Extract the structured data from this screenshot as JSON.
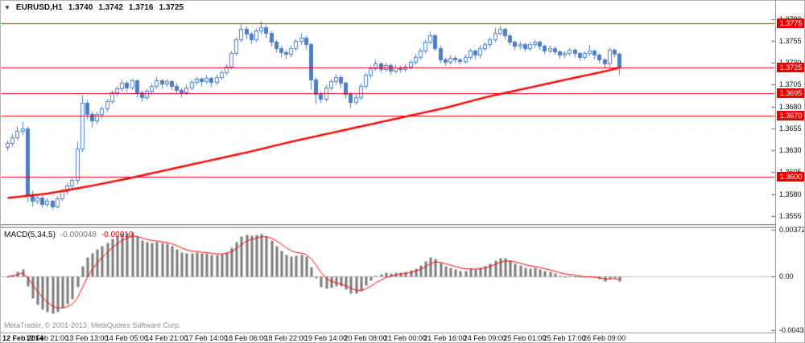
{
  "header": {
    "symbol": "EURUSD,H1",
    "open": "1.3740",
    "high": "1.3742",
    "low": "1.3716",
    "close": "1.3725"
  },
  "indicator_label": {
    "name": "MACD(5,34,5)",
    "value": "-0.000048",
    "signal": "-0.00010"
  },
  "watermark": "MetaTrader, © 2001-2013, MetaQuotes Software Corp.",
  "colors": {
    "candle": "#4d7ec1",
    "candle_bull_fill": "#ffffff",
    "ma": "#ff0000",
    "level": "#e80000",
    "badge_bg": "#e80000",
    "badge_text": "#ffffff",
    "histogram": "#7b7b7b",
    "signal": "#ff0000",
    "grid": "#ececec",
    "zero_line": "#c0c0c0"
  },
  "chart_data": {
    "type": "candlestick",
    "title": "EURUSD,H1",
    "ylim": [
      1.3553,
      1.3788
    ],
    "grid": "horizontal-dotted",
    "y_ticks": [
      "1.3780",
      "1.3755",
      "1.3730",
      "1.3705",
      "1.3680",
      "1.3655",
      "1.3630",
      "1.3605",
      "1.3580",
      "1.3555"
    ],
    "levels": [
      "1.3775",
      "1.3725",
      "1.3695",
      "1.3670",
      "1.3600"
    ],
    "x_labels": [
      "12 Feb 2014",
      "12 Feb 21:00",
      "13 Feb 13:00",
      "14 Feb 05:00",
      "14 Feb 21:00",
      "17 Feb 14:00",
      "18 Feb 06:00",
      "18 Feb 22:00",
      "19 Feb 14:00",
      "20 Feb 08:00",
      "21 Feb 00:00",
      "21 Feb 16:00",
      "24 Feb 09:00",
      "25 Feb 01:00",
      "25 Feb 17:00",
      "26 Feb 09:00"
    ],
    "ma_line": [
      [
        0,
        1.3576
      ],
      [
        8,
        1.3581
      ],
      [
        16,
        1.3589
      ],
      [
        24,
        1.3598
      ],
      [
        32,
        1.3608
      ],
      [
        40,
        1.3618
      ],
      [
        48,
        1.3628
      ],
      [
        56,
        1.3639
      ],
      [
        64,
        1.3649
      ],
      [
        72,
        1.3659
      ],
      [
        80,
        1.3669
      ],
      [
        88,
        1.3679
      ],
      [
        96,
        1.3691
      ],
      [
        104,
        1.3701
      ],
      [
        112,
        1.3711
      ],
      [
        117,
        1.3717
      ],
      [
        121,
        1.3722
      ],
      [
        123,
        1.3725
      ]
    ],
    "macd": {
      "fast": 5,
      "slow": 34,
      "signal_period": 5,
      "ylim": [
        -0.00434,
        0.00372
      ],
      "axis_labels": [
        "0.00372",
        "0.00",
        "-0.00434"
      ]
    },
    "candles": [
      [
        1.3634,
        1.3642,
        1.363,
        1.3638
      ],
      [
        1.3638,
        1.3649,
        1.3635,
        1.3645
      ],
      [
        1.3645,
        1.3658,
        1.3642,
        1.3652
      ],
      [
        1.3652,
        1.3663,
        1.3648,
        1.3655
      ],
      [
        1.3655,
        1.3658,
        1.3571,
        1.358
      ],
      [
        1.358,
        1.3584,
        1.3566,
        1.3572
      ],
      [
        1.3572,
        1.358,
        1.3569,
        1.3576
      ],
      [
        1.3576,
        1.3579,
        1.3565,
        1.3569
      ],
      [
        1.3569,
        1.3576,
        1.3566,
        1.3572
      ],
      [
        1.3572,
        1.3574,
        1.3563,
        1.3566
      ],
      [
        1.3566,
        1.3578,
        1.3564,
        1.3575
      ],
      [
        1.3575,
        1.3586,
        1.3572,
        1.3583
      ],
      [
        1.3583,
        1.3593,
        1.358,
        1.359
      ],
      [
        1.359,
        1.3599,
        1.3587,
        1.3596
      ],
      [
        1.3596,
        1.364,
        1.3592,
        1.3632
      ],
      [
        1.3632,
        1.3693,
        1.3628,
        1.3684
      ],
      [
        1.3684,
        1.3688,
        1.3666,
        1.3671
      ],
      [
        1.3671,
        1.3675,
        1.3657,
        1.3664
      ],
      [
        1.3664,
        1.3674,
        1.366,
        1.3671
      ],
      [
        1.3671,
        1.3681,
        1.3667,
        1.3678
      ],
      [
        1.3678,
        1.3689,
        1.3674,
        1.3686
      ],
      [
        1.3686,
        1.3699,
        1.3683,
        1.3696
      ],
      [
        1.3696,
        1.3704,
        1.3692,
        1.3701
      ],
      [
        1.3701,
        1.3712,
        1.3697,
        1.3707
      ],
      [
        1.3707,
        1.371,
        1.3697,
        1.3702
      ],
      [
        1.3702,
        1.3713,
        1.3699,
        1.371
      ],
      [
        1.371,
        1.3712,
        1.3691,
        1.3696
      ],
      [
        1.3696,
        1.3699,
        1.3686,
        1.3691
      ],
      [
        1.3691,
        1.3701,
        1.3688,
        1.3698
      ],
      [
        1.3698,
        1.3707,
        1.3694,
        1.3704
      ],
      [
        1.3704,
        1.3715,
        1.3701,
        1.371
      ],
      [
        1.371,
        1.3712,
        1.3701,
        1.3706
      ],
      [
        1.3706,
        1.3712,
        1.3703,
        1.3709
      ],
      [
        1.3709,
        1.3711,
        1.3699,
        1.3704
      ],
      [
        1.3704,
        1.3707,
        1.3694,
        1.3699
      ],
      [
        1.3699,
        1.3702,
        1.3691,
        1.3696
      ],
      [
        1.3696,
        1.3705,
        1.3693,
        1.3702
      ],
      [
        1.3702,
        1.3711,
        1.3699,
        1.3708
      ],
      [
        1.3708,
        1.3715,
        1.3705,
        1.3712
      ],
      [
        1.3712,
        1.3714,
        1.3704,
        1.3709
      ],
      [
        1.3709,
        1.3716,
        1.3706,
        1.3713
      ],
      [
        1.3713,
        1.3715,
        1.3703,
        1.3708
      ],
      [
        1.3708,
        1.3717,
        1.3705,
        1.3714
      ],
      [
        1.3714,
        1.3722,
        1.3711,
        1.3719
      ],
      [
        1.3719,
        1.3729,
        1.3716,
        1.3726
      ],
      [
        1.3726,
        1.3744,
        1.3723,
        1.3741
      ],
      [
        1.3741,
        1.376,
        1.3738,
        1.3757
      ],
      [
        1.3757,
        1.3774,
        1.3754,
        1.3769
      ],
      [
        1.3769,
        1.3772,
        1.3758,
        1.3763
      ],
      [
        1.3763,
        1.3766,
        1.3752,
        1.3757
      ],
      [
        1.3757,
        1.377,
        1.3754,
        1.3767
      ],
      [
        1.3767,
        1.3778,
        1.3763,
        1.3771
      ],
      [
        1.3771,
        1.3773,
        1.3759,
        1.3764
      ],
      [
        1.3764,
        1.3767,
        1.3749,
        1.3754
      ],
      [
        1.3754,
        1.3757,
        1.3742,
        1.3747
      ],
      [
        1.3747,
        1.375,
        1.3737,
        1.3742
      ],
      [
        1.3742,
        1.3746,
        1.3735,
        1.374
      ],
      [
        1.374,
        1.375,
        1.3737,
        1.3747
      ],
      [
        1.3747,
        1.3758,
        1.3744,
        1.3755
      ],
      [
        1.3755,
        1.3764,
        1.3751,
        1.3759
      ],
      [
        1.3759,
        1.3761,
        1.3746,
        1.3751
      ],
      [
        1.3751,
        1.3753,
        1.37,
        1.3711
      ],
      [
        1.3711,
        1.3714,
        1.3683,
        1.3694
      ],
      [
        1.3694,
        1.3698,
        1.3684,
        1.3689
      ],
      [
        1.3689,
        1.3705,
        1.3686,
        1.3702
      ],
      [
        1.3702,
        1.3712,
        1.3698,
        1.3709
      ],
      [
        1.3709,
        1.3717,
        1.3705,
        1.3714
      ],
      [
        1.3714,
        1.3716,
        1.3702,
        1.3707
      ],
      [
        1.3707,
        1.3709,
        1.369,
        1.3694
      ],
      [
        1.3694,
        1.3697,
        1.3679,
        1.3685
      ],
      [
        1.3685,
        1.3694,
        1.3682,
        1.3691
      ],
      [
        1.3691,
        1.3707,
        1.3688,
        1.3704
      ],
      [
        1.3704,
        1.3719,
        1.3701,
        1.3716
      ],
      [
        1.3716,
        1.3727,
        1.3713,
        1.3724
      ],
      [
        1.3724,
        1.3734,
        1.3721,
        1.3729
      ],
      [
        1.3729,
        1.3731,
        1.3719,
        1.3723
      ],
      [
        1.3723,
        1.373,
        1.372,
        1.3727
      ],
      [
        1.3727,
        1.3729,
        1.3717,
        1.3721
      ],
      [
        1.3721,
        1.3728,
        1.3718,
        1.3725
      ],
      [
        1.3725,
        1.3727,
        1.3719,
        1.3723
      ],
      [
        1.3723,
        1.3729,
        1.372,
        1.3726
      ],
      [
        1.3726,
        1.3734,
        1.3723,
        1.3731
      ],
      [
        1.3731,
        1.374,
        1.3728,
        1.3737
      ],
      [
        1.3737,
        1.3747,
        1.3734,
        1.3744
      ],
      [
        1.3744,
        1.3757,
        1.3741,
        1.3754
      ],
      [
        1.3754,
        1.3766,
        1.3751,
        1.3761
      ],
      [
        1.3761,
        1.3763,
        1.3744,
        1.3747
      ],
      [
        1.3747,
        1.375,
        1.373,
        1.3734
      ],
      [
        1.3734,
        1.3737,
        1.3727,
        1.3731
      ],
      [
        1.3731,
        1.3739,
        1.3728,
        1.3736
      ],
      [
        1.3736,
        1.3738,
        1.373,
        1.3734
      ],
      [
        1.3734,
        1.3736,
        1.3728,
        1.3732
      ],
      [
        1.3732,
        1.374,
        1.3729,
        1.3737
      ],
      [
        1.3737,
        1.3747,
        1.3734,
        1.3744
      ],
      [
        1.3744,
        1.3746,
        1.3735,
        1.3739
      ],
      [
        1.3739,
        1.375,
        1.3736,
        1.3747
      ],
      [
        1.3747,
        1.3754,
        1.3744,
        1.3751
      ],
      [
        1.3751,
        1.376,
        1.3748,
        1.3757
      ],
      [
        1.3757,
        1.3771,
        1.3754,
        1.3764
      ],
      [
        1.3764,
        1.3772,
        1.3761,
        1.3769
      ],
      [
        1.3769,
        1.3771,
        1.3757,
        1.3761
      ],
      [
        1.3761,
        1.3763,
        1.375,
        1.3754
      ],
      [
        1.3754,
        1.3756,
        1.3745,
        1.3749
      ],
      [
        1.3749,
        1.3755,
        1.3746,
        1.3751
      ],
      [
        1.3751,
        1.3753,
        1.3743,
        1.3747
      ],
      [
        1.3747,
        1.3754,
        1.3744,
        1.3751
      ],
      [
        1.3751,
        1.3757,
        1.3748,
        1.3754
      ],
      [
        1.3754,
        1.3756,
        1.3745,
        1.3749
      ],
      [
        1.3749,
        1.3751,
        1.374,
        1.3744
      ],
      [
        1.3744,
        1.375,
        1.3741,
        1.3747
      ],
      [
        1.3747,
        1.3749,
        1.3739,
        1.3743
      ],
      [
        1.3743,
        1.3745,
        1.3735,
        1.3739
      ],
      [
        1.3739,
        1.3744,
        1.3736,
        1.3741
      ],
      [
        1.3741,
        1.3748,
        1.3738,
        1.3745
      ],
      [
        1.3745,
        1.3747,
        1.3737,
        1.3741
      ],
      [
        1.3741,
        1.3743,
        1.3733,
        1.3737
      ],
      [
        1.3737,
        1.3744,
        1.3734,
        1.3741
      ],
      [
        1.3741,
        1.3751,
        1.3738,
        1.3744
      ],
      [
        1.3744,
        1.3746,
        1.3735,
        1.3739
      ],
      [
        1.3739,
        1.3741,
        1.373,
        1.3734
      ],
      [
        1.3734,
        1.3736,
        1.3725,
        1.3729
      ],
      [
        1.3729,
        1.3748,
        1.3726,
        1.3745
      ],
      [
        1.3745,
        1.3747,
        1.3737,
        1.374
      ],
      [
        1.374,
        1.3742,
        1.3716,
        1.3725
      ]
    ]
  }
}
